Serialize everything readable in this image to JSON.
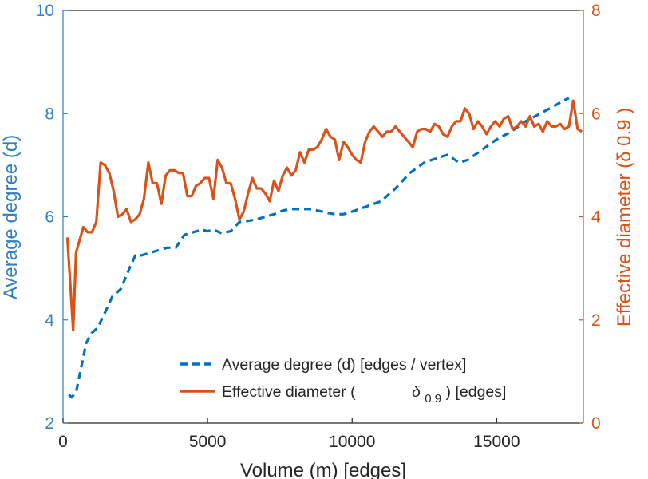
{
  "chart_data": {
    "type": "line",
    "xlabel": "Volume (m) [edges]",
    "ylabel_left": "Average degree (d)",
    "ylabel_right": "Effective diameter (δ 0.9 )",
    "xlim": [
      0,
      18000
    ],
    "ylim_left": [
      2,
      10
    ],
    "ylim_right": [
      0,
      8
    ],
    "xticks": [
      "0",
      "5000",
      "10000",
      "15000"
    ],
    "yticks_left": [
      "2",
      "4",
      "6",
      "8",
      "10"
    ],
    "yticks_right": [
      "0",
      "2",
      "4",
      "6",
      "8"
    ],
    "grid": false,
    "legend_position": "bottom-right",
    "colors": {
      "left": "#2f7fc1",
      "right": "#d95319",
      "axis": "#262626"
    },
    "legend": [
      {
        "label": "Average degree (d) [edges / vertex]",
        "style": "dashed",
        "color": "#0072bd"
      },
      {
        "label_prefix": "Effective diameter (",
        "label_symbol": "δ",
        "label_subscript": "0.9",
        "label_suffix": ") [edges]",
        "style": "solid",
        "color": "#d95319"
      }
    ],
    "series": [
      {
        "name": "Average degree (d) [edges / vertex]",
        "axis": "left",
        "style": "dashed",
        "color": "#0072bd",
        "x": [
          200,
          300,
          450,
          600,
          800,
          1000,
          1200,
          1500,
          1700,
          2000,
          2300,
          2500,
          2700,
          3000,
          3300,
          3600,
          3900,
          4200,
          4500,
          4800,
          5000,
          5200,
          5500,
          5800,
          6100,
          6400,
          6700,
          7000,
          7300,
          7600,
          7900,
          8200,
          8500,
          8800,
          9100,
          9400,
          9700,
          10000,
          10500,
          11000,
          11500,
          12000,
          12500,
          13000,
          13300,
          13700,
          14000,
          14500,
          15000,
          15500,
          16000,
          16500,
          17000,
          17300,
          17500
        ],
        "y": [
          2.55,
          2.5,
          2.6,
          3.0,
          3.55,
          3.75,
          3.85,
          4.2,
          4.45,
          4.6,
          5.0,
          5.25,
          5.25,
          5.3,
          5.35,
          5.4,
          5.4,
          5.65,
          5.7,
          5.75,
          5.72,
          5.75,
          5.68,
          5.72,
          5.9,
          5.92,
          5.95,
          6.0,
          6.05,
          6.12,
          6.15,
          6.15,
          6.15,
          6.12,
          6.08,
          6.05,
          6.05,
          6.1,
          6.2,
          6.3,
          6.55,
          6.85,
          7.05,
          7.15,
          7.2,
          7.05,
          7.1,
          7.3,
          7.5,
          7.65,
          7.85,
          8.0,
          8.15,
          8.25,
          8.3
        ]
      },
      {
        "name": "Effective diameter (δ 0.9 ) [edges]",
        "axis": "right",
        "style": "solid",
        "color": "#d95319",
        "x": [
          150,
          250,
          350,
          450,
          550,
          700,
          850,
          1000,
          1150,
          1300,
          1450,
          1600,
          1750,
          1900,
          2050,
          2200,
          2350,
          2500,
          2650,
          2800,
          2950,
          3100,
          3250,
          3400,
          3550,
          3700,
          3850,
          4000,
          4150,
          4300,
          4450,
          4600,
          4750,
          4900,
          5050,
          5200,
          5350,
          5500,
          5650,
          5800,
          5950,
          6100,
          6250,
          6400,
          6550,
          6700,
          6850,
          7000,
          7150,
          7300,
          7450,
          7600,
          7750,
          7900,
          8050,
          8200,
          8350,
          8500,
          8650,
          8800,
          8950,
          9100,
          9250,
          9400,
          9550,
          9700,
          9850,
          10000,
          10150,
          10300,
          10450,
          10600,
          10750,
          10900,
          11050,
          11200,
          11350,
          11500,
          11650,
          11800,
          11950,
          12100,
          12250,
          12400,
          12550,
          12700,
          12850,
          13000,
          13150,
          13300,
          13450,
          13600,
          13750,
          13900,
          14050,
          14200,
          14350,
          14500,
          14650,
          14800,
          14950,
          15100,
          15250,
          15400,
          15550,
          15700,
          15850,
          16000,
          16150,
          16300,
          16450,
          16600,
          16750,
          16900,
          17050,
          17200,
          17350,
          17500,
          17650,
          17800,
          17950
        ],
        "y": [
          3.6,
          2.7,
          1.8,
          3.3,
          3.5,
          3.8,
          3.7,
          3.7,
          3.9,
          5.05,
          5.0,
          4.85,
          4.5,
          4.0,
          4.05,
          4.15,
          3.9,
          3.95,
          4.05,
          4.35,
          5.05,
          4.65,
          4.65,
          4.25,
          4.8,
          4.9,
          4.9,
          4.85,
          4.85,
          4.4,
          4.4,
          4.6,
          4.65,
          4.75,
          4.75,
          4.35,
          5.1,
          4.95,
          4.65,
          4.65,
          4.35,
          3.95,
          4.1,
          4.45,
          4.75,
          4.55,
          4.55,
          4.45,
          4.3,
          4.7,
          4.5,
          4.8,
          4.95,
          4.8,
          4.9,
          5.25,
          5.05,
          5.3,
          5.3,
          5.35,
          5.5,
          5.7,
          5.55,
          5.5,
          5.1,
          5.45,
          5.35,
          5.2,
          5.1,
          5.05,
          5.45,
          5.65,
          5.75,
          5.65,
          5.55,
          5.65,
          5.65,
          5.75,
          5.65,
          5.55,
          5.45,
          5.35,
          5.65,
          5.7,
          5.7,
          5.65,
          5.8,
          5.75,
          5.6,
          5.55,
          5.75,
          5.85,
          5.85,
          6.1,
          6.0,
          5.7,
          5.85,
          5.75,
          5.6,
          5.75,
          5.85,
          5.75,
          5.9,
          5.95,
          5.7,
          5.75,
          5.85,
          5.75,
          5.95,
          5.75,
          5.8,
          5.65,
          5.85,
          5.75,
          5.75,
          5.8,
          5.7,
          5.75,
          6.25,
          5.7,
          5.65
        ]
      }
    ]
  }
}
